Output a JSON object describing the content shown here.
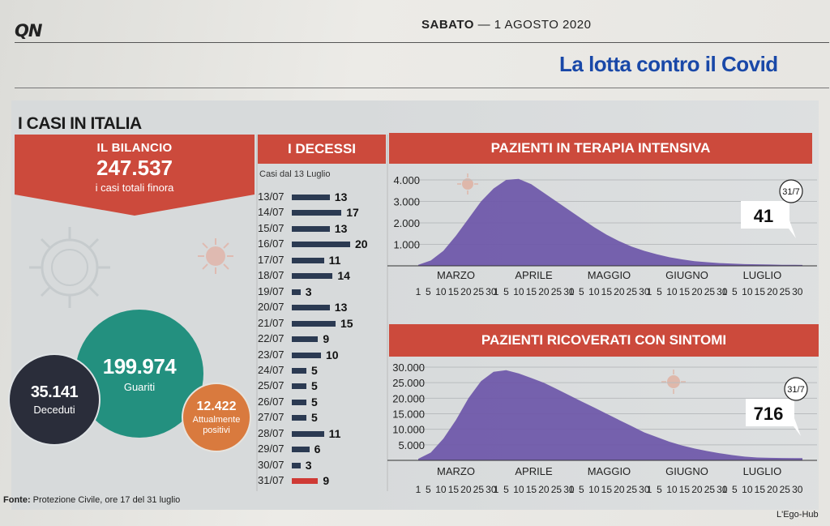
{
  "masthead": {
    "logo": "QN",
    "day": "SABATO",
    "date": "— 1 AGOSTO 2020",
    "section": "La lotta contro il Covid"
  },
  "infographic": {
    "title": "I CASI IN ITALIA",
    "bilancio": {
      "label": "IL BILANCIO",
      "total": "247.537",
      "subtitle": "i casi totali finora"
    },
    "bubbles": {
      "guariti": {
        "value": "199.974",
        "label": "Guariti"
      },
      "deceduti": {
        "value": "35.141",
        "label": "Deceduti"
      },
      "positivi": {
        "value": "12.422",
        "label_line1": "Attualmente",
        "label_line2": "positivi"
      }
    },
    "source": {
      "label": "Fonte:",
      "text": "Protezione Civile, ore 17 del 31 luglio"
    },
    "credit": "L'Ego-Hub",
    "colors": {
      "red": "#cc4a3c",
      "navy_bar": "#2b3a52",
      "purple_area": "#6d56a8",
      "teal": "#23907f",
      "orange": "#d97a3e",
      "dark": "#2a2d3a"
    }
  },
  "chart_data": [
    {
      "type": "bar",
      "title": "I DECESSI",
      "note": "Casi dal 13 Luglio",
      "orientation": "horizontal",
      "categories": [
        "13/07",
        "14/07",
        "15/07",
        "16/07",
        "17/07",
        "18/07",
        "19/07",
        "20/07",
        "21/07",
        "22/07",
        "23/07",
        "24/07",
        "25/07",
        "26/07",
        "27/07",
        "28/07",
        "29/07",
        "30/07",
        "31/07"
      ],
      "values": [
        13,
        17,
        13,
        20,
        11,
        14,
        3,
        13,
        15,
        9,
        10,
        5,
        5,
        5,
        5,
        11,
        6,
        3,
        9
      ],
      "highlight": "31/07"
    },
    {
      "type": "area",
      "title": "PAZIENTI IN TERAPIA INTENSIVA",
      "yticks": [
        "4.000",
        "3.000",
        "2.000",
        "1.000"
      ],
      "ylim": [
        0,
        4000
      ],
      "months": [
        "MARZO",
        "APRILE",
        "MAGGIO",
        "GIUGNO",
        "LUGLIO"
      ],
      "day_ticks": [
        "1",
        "5",
        "10",
        "15",
        "20",
        "25",
        "30"
      ],
      "day_ticks_last": [
        "1",
        "5",
        "10",
        "15",
        "20",
        "25",
        "30"
      ],
      "x": [
        0,
        5,
        10,
        15,
        20,
        25,
        30,
        35,
        40,
        45,
        50,
        55,
        60,
        65,
        70,
        75,
        80,
        85,
        90,
        95,
        100,
        105,
        110,
        115,
        120,
        125,
        130,
        135,
        140,
        145,
        150,
        153
      ],
      "values": [
        50,
        250,
        700,
        1400,
        2200,
        3000,
        3600,
        4000,
        4050,
        3800,
        3400,
        3000,
        2600,
        2200,
        1800,
        1450,
        1150,
        900,
        700,
        540,
        400,
        300,
        220,
        170,
        130,
        100,
        80,
        70,
        60,
        50,
        45,
        41
      ],
      "latest_date": "31/7",
      "latest_value": "41"
    },
    {
      "type": "area",
      "title": "PAZIENTI RICOVERATI CON SINTOMI",
      "yticks": [
        "30.000",
        "25.000",
        "20.000",
        "15.000",
        "10.000",
        "5.000"
      ],
      "ylim": [
        0,
        30000
      ],
      "months": [
        "MARZO",
        "APRILE",
        "MAGGIO",
        "GIUGNO",
        "LUGLIO"
      ],
      "day_ticks": [
        "1",
        "5",
        "10",
        "15",
        "20",
        "25",
        "30"
      ],
      "day_ticks_last": [
        "1",
        "5",
        "10",
        "15",
        "20",
        "25",
        "30"
      ],
      "x": [
        0,
        5,
        10,
        15,
        20,
        25,
        30,
        35,
        40,
        45,
        50,
        55,
        60,
        65,
        70,
        75,
        80,
        85,
        90,
        95,
        100,
        105,
        110,
        115,
        120,
        125,
        130,
        135,
        140,
        145,
        150,
        153
      ],
      "values": [
        500,
        2500,
        7000,
        13000,
        20000,
        25500,
        28500,
        29000,
        28000,
        26500,
        25000,
        23000,
        21000,
        19000,
        17000,
        15000,
        13000,
        11000,
        9000,
        7500,
        6000,
        4800,
        3800,
        3000,
        2300,
        1700,
        1200,
        900,
        800,
        750,
        720,
        716
      ],
      "latest_date": "31/7",
      "latest_value": "716"
    }
  ]
}
